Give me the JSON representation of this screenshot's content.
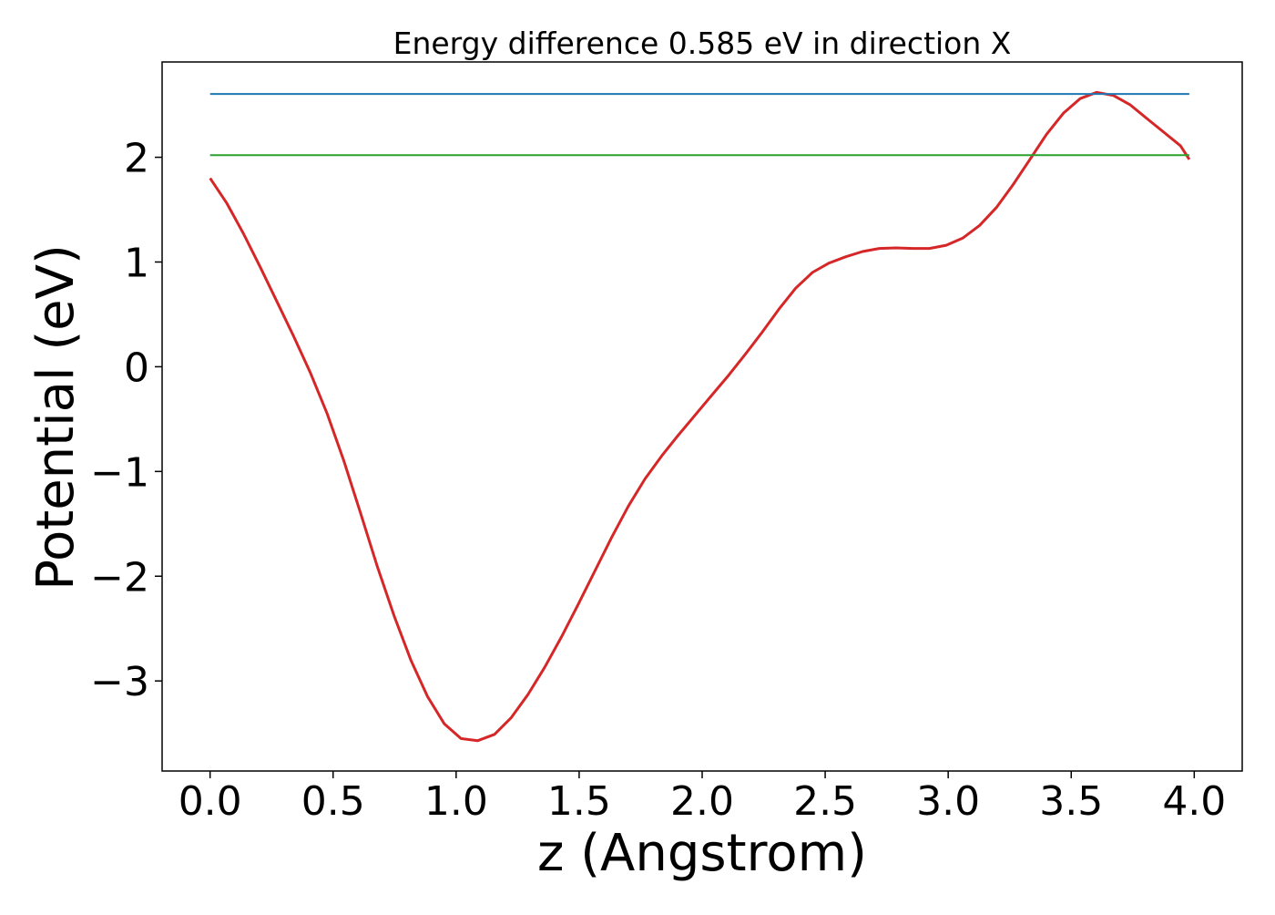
{
  "chart_data": {
    "type": "line",
    "title": "Energy difference 0.585 eV in direction X",
    "xlabel": "z (Angstrom)",
    "ylabel": "Potential (eV)",
    "xlim": [
      -0.195,
      4.195
    ],
    "ylim": [
      -3.86,
      2.91
    ],
    "xticks": [
      "0.0",
      "0.5",
      "1.0",
      "1.5",
      "2.0",
      "2.5",
      "3.0",
      "3.5",
      "4.0"
    ],
    "xtick_values": [
      0.0,
      0.5,
      1.0,
      1.5,
      2.0,
      2.5,
      3.0,
      3.5,
      4.0
    ],
    "yticks": [
      "−3",
      "−2",
      "−1",
      "0",
      "1",
      "2"
    ],
    "ytick_values": [
      -3,
      -2,
      -1,
      0,
      1,
      2
    ],
    "grid": false,
    "series": [
      {
        "color": "#d62728",
        "x": [
          0.0,
          0.068,
          0.136,
          0.204,
          0.272,
          0.34,
          0.408,
          0.476,
          0.544,
          0.612,
          0.68,
          0.748,
          0.816,
          0.884,
          0.952,
          1.02,
          1.088,
          1.156,
          1.224,
          1.292,
          1.36,
          1.428,
          1.496,
          1.564,
          1.632,
          1.7,
          1.768,
          1.836,
          1.904,
          1.972,
          2.04,
          2.108,
          2.176,
          2.244,
          2.312,
          2.38,
          2.448,
          2.516,
          2.584,
          2.652,
          2.72,
          2.788,
          2.856,
          2.924,
          2.992,
          3.06,
          3.128,
          3.196,
          3.264,
          3.332,
          3.4,
          3.468,
          3.536,
          3.604,
          3.672,
          3.74,
          3.808,
          3.876,
          3.944,
          3.98
        ],
        "y": [
          1.8,
          1.56,
          1.27,
          0.95,
          0.62,
          0.29,
          -0.06,
          -0.45,
          -0.9,
          -1.4,
          -1.91,
          -2.38,
          -2.8,
          -3.15,
          -3.41,
          -3.55,
          -3.57,
          -3.51,
          -3.35,
          -3.13,
          -2.87,
          -2.58,
          -2.27,
          -1.95,
          -1.63,
          -1.33,
          -1.07,
          -0.85,
          -0.65,
          -0.46,
          -0.27,
          -0.08,
          0.12,
          0.33,
          0.55,
          0.75,
          0.9,
          0.99,
          1.05,
          1.1,
          1.13,
          1.135,
          1.13,
          1.13,
          1.16,
          1.23,
          1.35,
          1.52,
          1.74,
          1.98,
          2.22,
          2.42,
          2.56,
          2.62,
          2.59,
          2.5,
          2.37,
          2.24,
          2.11,
          1.98
        ]
      },
      {
        "color": "#1f77b4",
        "x": [
          0.0,
          3.98
        ],
        "y": [
          2.605,
          2.605
        ]
      },
      {
        "color": "#2ca02c",
        "x": [
          0.0,
          3.98
        ],
        "y": [
          2.02,
          2.02
        ]
      }
    ]
  }
}
